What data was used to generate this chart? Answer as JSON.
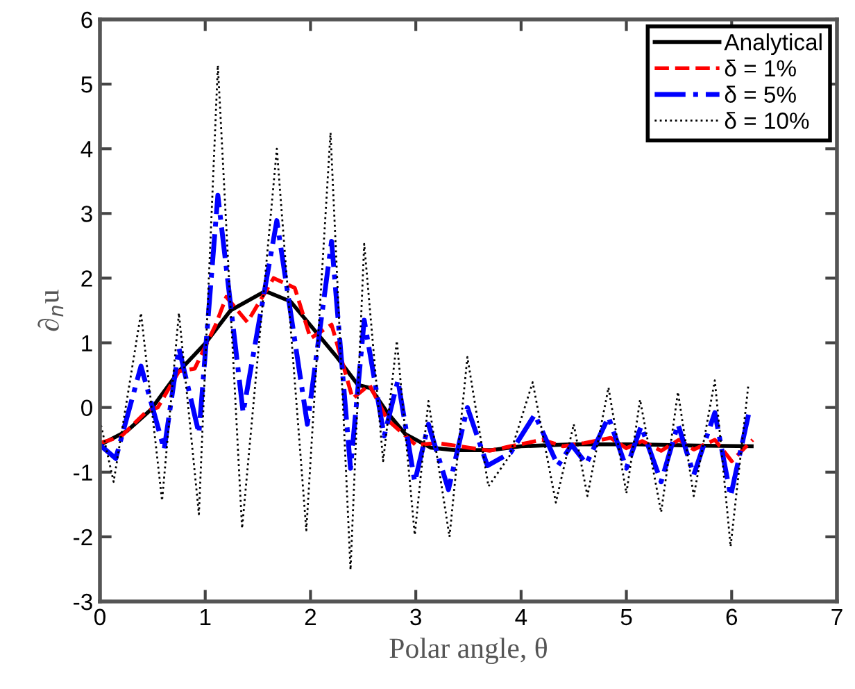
{
  "chart_data": {
    "type": "line",
    "xlabel": "Polar angle, θ",
    "ylabel": "∂$_{n}$u",
    "xlim": [
      0,
      7
    ],
    "ylim": [
      -3,
      6
    ],
    "xticks": [
      0,
      1,
      2,
      3,
      4,
      5,
      6,
      7
    ],
    "yticks": [
      -3,
      -2,
      -1,
      0,
      1,
      2,
      3,
      4,
      5,
      6
    ],
    "grid": false,
    "legend": "top right",
    "marker": "none",
    "series": [
      {
        "name": "Analytical",
        "color": "#000000",
        "line_style": "solid",
        "x": [
          0,
          0.26,
          0.48,
          0.75,
          1.0,
          1.24,
          1.57,
          1.81,
          2.03,
          2.25,
          2.45,
          2.57,
          2.73,
          2.9,
          3.14,
          3.37,
          3.72,
          4.0,
          4.48,
          4.8,
          5.1,
          5.67,
          6.19
        ],
        "values": [
          -0.58,
          -0.36,
          -0.04,
          0.56,
          0.99,
          1.5,
          1.8,
          1.64,
          1.21,
          0.78,
          0.35,
          0.3,
          -0.08,
          -0.41,
          -0.62,
          -0.66,
          -0.66,
          -0.6,
          -0.57,
          -0.57,
          -0.57,
          -0.59,
          -0.6
        ]
      },
      {
        "name": "δ = 1%",
        "color": "#ff0000",
        "line_style": "dashed",
        "x": [
          0,
          0.2,
          0.45,
          0.55,
          0.75,
          0.9,
          1.1,
          1.2,
          1.4,
          1.65,
          1.85,
          2.0,
          2.2,
          2.4,
          2.56,
          2.73,
          3.0,
          3.2,
          3.5,
          3.7,
          3.9,
          4.2,
          4.4,
          4.6,
          4.85,
          5.0,
          5.15,
          5.33,
          5.5,
          5.64,
          5.84,
          6.0,
          6.2
        ],
        "values": [
          -0.55,
          -0.45,
          -0.05,
          0.0,
          0.56,
          0.6,
          1.28,
          1.71,
          1.32,
          2.0,
          1.85,
          1.07,
          1.28,
          0.14,
          0.35,
          -0.19,
          -0.58,
          -0.55,
          -0.62,
          -0.67,
          -0.6,
          -0.5,
          -0.6,
          -0.55,
          -0.47,
          -0.63,
          -0.52,
          -0.67,
          -0.5,
          -0.65,
          -0.5,
          -0.83,
          -0.5
        ]
      },
      {
        "name": "δ = 5%",
        "color": "#0000ff",
        "line_style": "dashdot",
        "x": [
          0,
          0.15,
          0.39,
          0.61,
          0.75,
          0.94,
          1.12,
          1.36,
          1.68,
          1.97,
          2.2,
          2.38,
          2.51,
          2.7,
          2.83,
          2.99,
          3.12,
          3.31,
          3.49,
          3.68,
          3.9,
          4.13,
          4.35,
          4.48,
          4.62,
          4.83,
          5.0,
          5.14,
          5.33,
          5.49,
          5.64,
          5.84,
          5.99,
          6.16
        ],
        "values": [
          -0.58,
          -0.79,
          0.64,
          -0.65,
          0.92,
          -0.4,
          3.28,
          -0.08,
          2.89,
          -0.26,
          2.57,
          -0.94,
          1.35,
          -0.44,
          0.42,
          -1.15,
          -0.26,
          -1.27,
          0.0,
          -0.9,
          -0.7,
          -0.11,
          -0.9,
          -0.58,
          -0.87,
          -0.15,
          -0.94,
          -0.29,
          -1.15,
          -0.26,
          -1.04,
          -0.08,
          -1.37,
          -0.11
        ]
      },
      {
        "name": "δ = 10%",
        "color": "#000000",
        "line_style": "dotted",
        "x": [
          0,
          0.13,
          0.39,
          0.59,
          0.75,
          0.94,
          1.12,
          1.35,
          1.68,
          1.96,
          2.19,
          2.38,
          2.51,
          2.69,
          2.82,
          2.99,
          3.12,
          3.32,
          3.49,
          3.69,
          3.89,
          4.11,
          4.33,
          4.5,
          4.63,
          4.83,
          5.0,
          5.13,
          5.33,
          5.49,
          5.64,
          5.84,
          5.99,
          6.16
        ],
        "values": [
          -0.2,
          -1.15,
          1.46,
          -1.44,
          1.46,
          -1.65,
          5.29,
          -1.87,
          4.0,
          -1.9,
          4.25,
          -2.51,
          2.53,
          -0.83,
          1.03,
          -1.97,
          0.1,
          -2.0,
          0.78,
          -1.22,
          -0.75,
          0.39,
          -1.47,
          -0.26,
          -1.37,
          0.31,
          -1.33,
          0.12,
          -1.62,
          0.24,
          -1.37,
          0.42,
          -2.15,
          0.37
        ]
      }
    ]
  }
}
